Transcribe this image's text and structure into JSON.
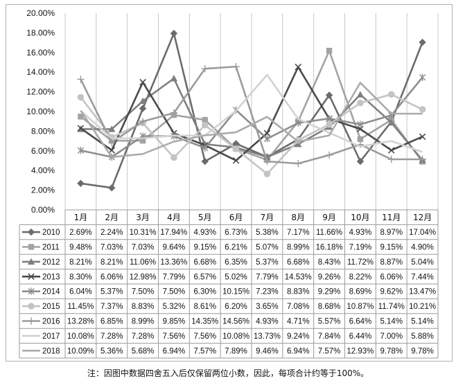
{
  "chart_data": {
    "type": "line",
    "title": "",
    "xlabel": "",
    "ylabel": "",
    "ylim": [
      0,
      20
    ],
    "yticks": [
      "0.00%",
      "2.00%",
      "4.00%",
      "6.00%",
      "8.00%",
      "10.00%",
      "12.00%",
      "14.00%",
      "16.00%",
      "18.00%",
      "20.00%"
    ],
    "grid": "vertical",
    "legend": "data-table",
    "categories": [
      "1月",
      "2月",
      "3月",
      "4月",
      "5月",
      "6月",
      "7月",
      "8月",
      "9月",
      "10月",
      "11月",
      "12月"
    ],
    "series": [
      {
        "name": "2010",
        "color": "#6b6b6b",
        "marker": "diamond",
        "values": [
          2.69,
          2.24,
          10.31,
          17.94,
          4.93,
          6.73,
          5.38,
          7.17,
          11.66,
          4.93,
          8.97,
          17.04
        ],
        "labels": [
          "2.69%",
          "2.24%",
          "10.31%",
          "17.94%",
          "4.93%",
          "6.73%",
          "5.38%",
          "7.17%",
          "11.66%",
          "4.93%",
          "8.97%",
          "17.04%"
        ]
      },
      {
        "name": "2011",
        "color": "#a3a3a3",
        "marker": "square",
        "values": [
          9.48,
          7.03,
          7.03,
          9.64,
          9.15,
          6.21,
          5.07,
          8.99,
          16.18,
          7.19,
          9.15,
          4.9
        ],
        "labels": [
          "9.48%",
          "7.03%",
          "7.03%",
          "9.64%",
          "9.15%",
          "6.21%",
          "5.07%",
          "8.99%",
          "16.18%",
          "7.19%",
          "9.15%",
          "4.90%"
        ]
      },
      {
        "name": "2012",
        "color": "#7f7f7f",
        "marker": "triangle",
        "values": [
          8.21,
          8.21,
          11.06,
          13.36,
          6.68,
          6.35,
          5.37,
          6.68,
          8.43,
          11.72,
          8.87,
          5.04
        ],
        "labels": [
          "8.21%",
          "8.21%",
          "11.06%",
          "13.36%",
          "6.68%",
          "6.35%",
          "5.37%",
          "6.68%",
          "8.43%",
          "11.72%",
          "8.87%",
          "5.04%"
        ]
      },
      {
        "name": "2013",
        "color": "#4a4a4a",
        "marker": "x",
        "values": [
          8.3,
          6.06,
          12.98,
          7.79,
          6.57,
          5.02,
          7.79,
          14.53,
          9.26,
          8.22,
          6.06,
          7.44
        ],
        "labels": [
          "8.30%",
          "6.06%",
          "12.98%",
          "7.79%",
          "6.57%",
          "5.02%",
          "7.79%",
          "14.53%",
          "9.26%",
          "8.22%",
          "6.06%",
          "7.44%"
        ]
      },
      {
        "name": "2014",
        "color": "#8e8e8e",
        "marker": "star",
        "values": [
          6.04,
          5.37,
          7.5,
          7.5,
          6.3,
          10.15,
          7.23,
          8.83,
          9.29,
          8.69,
          9.62,
          13.47
        ],
        "labels": [
          "6.04%",
          "5.37%",
          "7.50%",
          "7.50%",
          "6.30%",
          "10.15%",
          "7.23%",
          "8.83%",
          "9.29%",
          "8.69%",
          "9.62%",
          "13.47%"
        ]
      },
      {
        "name": "2015",
        "color": "#c4c4c4",
        "marker": "circle",
        "values": [
          11.45,
          7.37,
          8.83,
          5.32,
          8.61,
          6.2,
          3.65,
          7.08,
          8.68,
          10.87,
          11.74,
          10.21
        ],
        "labels": [
          "11.45%",
          "7.37%",
          "8.83%",
          "5.32%",
          "8.61%",
          "6.20%",
          "3.65%",
          "7.08%",
          "8.68%",
          "10.87%",
          "11.74%",
          "10.21%"
        ]
      },
      {
        "name": "2016",
        "color": "#9b9b9b",
        "marker": "plus",
        "values": [
          13.28,
          6.85,
          8.99,
          9.85,
          14.35,
          14.56,
          4.93,
          4.71,
          5.57,
          6.64,
          5.14,
          5.14
        ],
        "labels": [
          "13.28%",
          "6.85%",
          "8.99%",
          "9.85%",
          "14.35%",
          "14.56%",
          "4.93%",
          "4.71%",
          "5.57%",
          "6.64%",
          "5.14%",
          "5.14%"
        ]
      },
      {
        "name": "2017",
        "color": "#d2d2d2",
        "marker": "none",
        "values": [
          10.08,
          7.28,
          7.28,
          7.56,
          7.56,
          10.08,
          13.73,
          9.24,
          7.84,
          6.44,
          7.0,
          5.88
        ],
        "labels": [
          "10.08%",
          "7.28%",
          "7.28%",
          "7.56%",
          "7.56%",
          "10.08%",
          "13.73%",
          "9.24%",
          "7.84%",
          "6.44%",
          "7.00%",
          "5.88%"
        ]
      },
      {
        "name": "2018",
        "color": "#ababab",
        "marker": "none",
        "values": [
          10.09,
          5.36,
          5.68,
          6.94,
          7.57,
          7.89,
          9.46,
          6.94,
          7.57,
          12.93,
          9.78,
          9.78
        ],
        "labels": [
          "10.09%",
          "5.36%",
          "5.68%",
          "6.94%",
          "7.57%",
          "7.89%",
          "9.46%",
          "6.94%",
          "7.57%",
          "12.93%",
          "9.78%",
          "9.78%"
        ]
      }
    ]
  },
  "note": "注：因图中数据四舍五入后仅保留两位小数，因此，每项合计约等于100%。"
}
